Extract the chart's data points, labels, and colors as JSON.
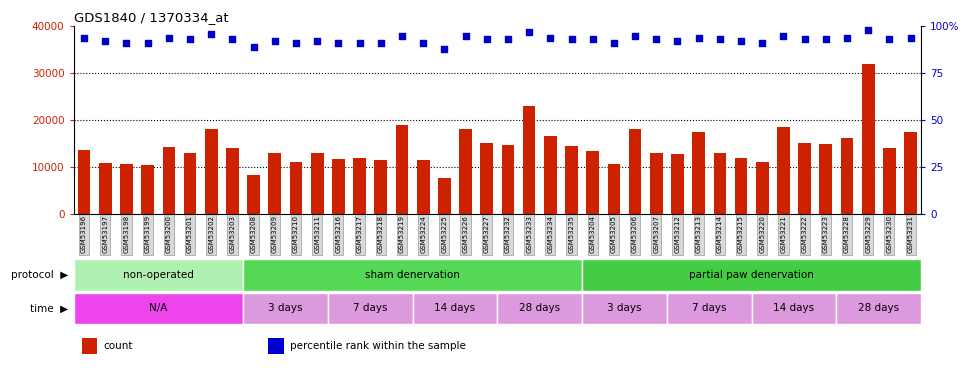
{
  "title": "GDS1840 / 1370334_at",
  "samples": [
    "GSM53196",
    "GSM53197",
    "GSM53198",
    "GSM53199",
    "GSM53200",
    "GSM53201",
    "GSM53202",
    "GSM53203",
    "GSM53208",
    "GSM53209",
    "GSM53210",
    "GSM53211",
    "GSM53216",
    "GSM53217",
    "GSM53218",
    "GSM53219",
    "GSM53224",
    "GSM53225",
    "GSM53226",
    "GSM53227",
    "GSM53232",
    "GSM53233",
    "GSM53234",
    "GSM53235",
    "GSM53204",
    "GSM53205",
    "GSM53206",
    "GSM53207",
    "GSM53212",
    "GSM53213",
    "GSM53214",
    "GSM53215",
    "GSM53220",
    "GSM53221",
    "GSM53222",
    "GSM53223",
    "GSM53228",
    "GSM53229",
    "GSM53230",
    "GSM53231"
  ],
  "counts": [
    13500,
    10800,
    10700,
    10500,
    14300,
    13000,
    18000,
    14000,
    8200,
    13000,
    11000,
    13000,
    11700,
    12000,
    11500,
    19000,
    11500,
    7700,
    18000,
    15000,
    14600,
    23000,
    16500,
    14500,
    13300,
    10700,
    18000,
    13000,
    12700,
    17500,
    13000,
    12000,
    11000,
    18500,
    15000,
    14800,
    16200,
    32000,
    14000,
    17500
  ],
  "percentiles": [
    94,
    92,
    91,
    91,
    94,
    93,
    96,
    93,
    89,
    92,
    91,
    92,
    91,
    91,
    91,
    95,
    91,
    88,
    95,
    93,
    93,
    97,
    94,
    93,
    93,
    91,
    95,
    93,
    92,
    94,
    93,
    92,
    91,
    95,
    93,
    93,
    94,
    98,
    93,
    94
  ],
  "bar_color": "#cc2200",
  "dot_color": "#0000cc",
  "ylim_left": [
    0,
    40000
  ],
  "ylim_right": [
    0,
    100
  ],
  "yticks_left": [
    0,
    10000,
    20000,
    30000,
    40000
  ],
  "yticks_right": [
    0,
    25,
    50,
    75,
    100
  ],
  "ytick_labels_left": [
    "0",
    "10000",
    "20000",
    "30000",
    "40000"
  ],
  "ytick_labels_right": [
    "0",
    "25",
    "50",
    "75",
    "100%"
  ],
  "grid_color": "black",
  "chart_bg": "#ffffff",
  "protocol_colors": [
    "#b0f0b0",
    "#55d855",
    "#33cc33"
  ],
  "time_color_na": "#ee55ee",
  "time_color_rest": "#dd99dd",
  "protocol_row": {
    "label": "protocol",
    "groups": [
      {
        "text": "non-operated",
        "start": 0,
        "end": 8,
        "color": "#b0f0b0"
      },
      {
        "text": "sham denervation",
        "start": 8,
        "end": 24,
        "color": "#55d855"
      },
      {
        "text": "partial paw denervation",
        "start": 24,
        "end": 40,
        "color": "#44cc44"
      }
    ]
  },
  "time_row": {
    "label": "time",
    "groups": [
      {
        "text": "N/A",
        "start": 0,
        "end": 8,
        "color": "#ee44ee"
      },
      {
        "text": "3 days",
        "start": 8,
        "end": 12,
        "color": "#dd99dd"
      },
      {
        "text": "7 days",
        "start": 12,
        "end": 16,
        "color": "#dd99dd"
      },
      {
        "text": "14 days",
        "start": 16,
        "end": 20,
        "color": "#dd99dd"
      },
      {
        "text": "28 days",
        "start": 20,
        "end": 24,
        "color": "#dd99dd"
      },
      {
        "text": "3 days",
        "start": 24,
        "end": 28,
        "color": "#dd99dd"
      },
      {
        "text": "7 days",
        "start": 28,
        "end": 32,
        "color": "#dd99dd"
      },
      {
        "text": "14 days",
        "start": 32,
        "end": 36,
        "color": "#dd99dd"
      },
      {
        "text": "28 days",
        "start": 36,
        "end": 40,
        "color": "#dd99dd"
      }
    ]
  }
}
